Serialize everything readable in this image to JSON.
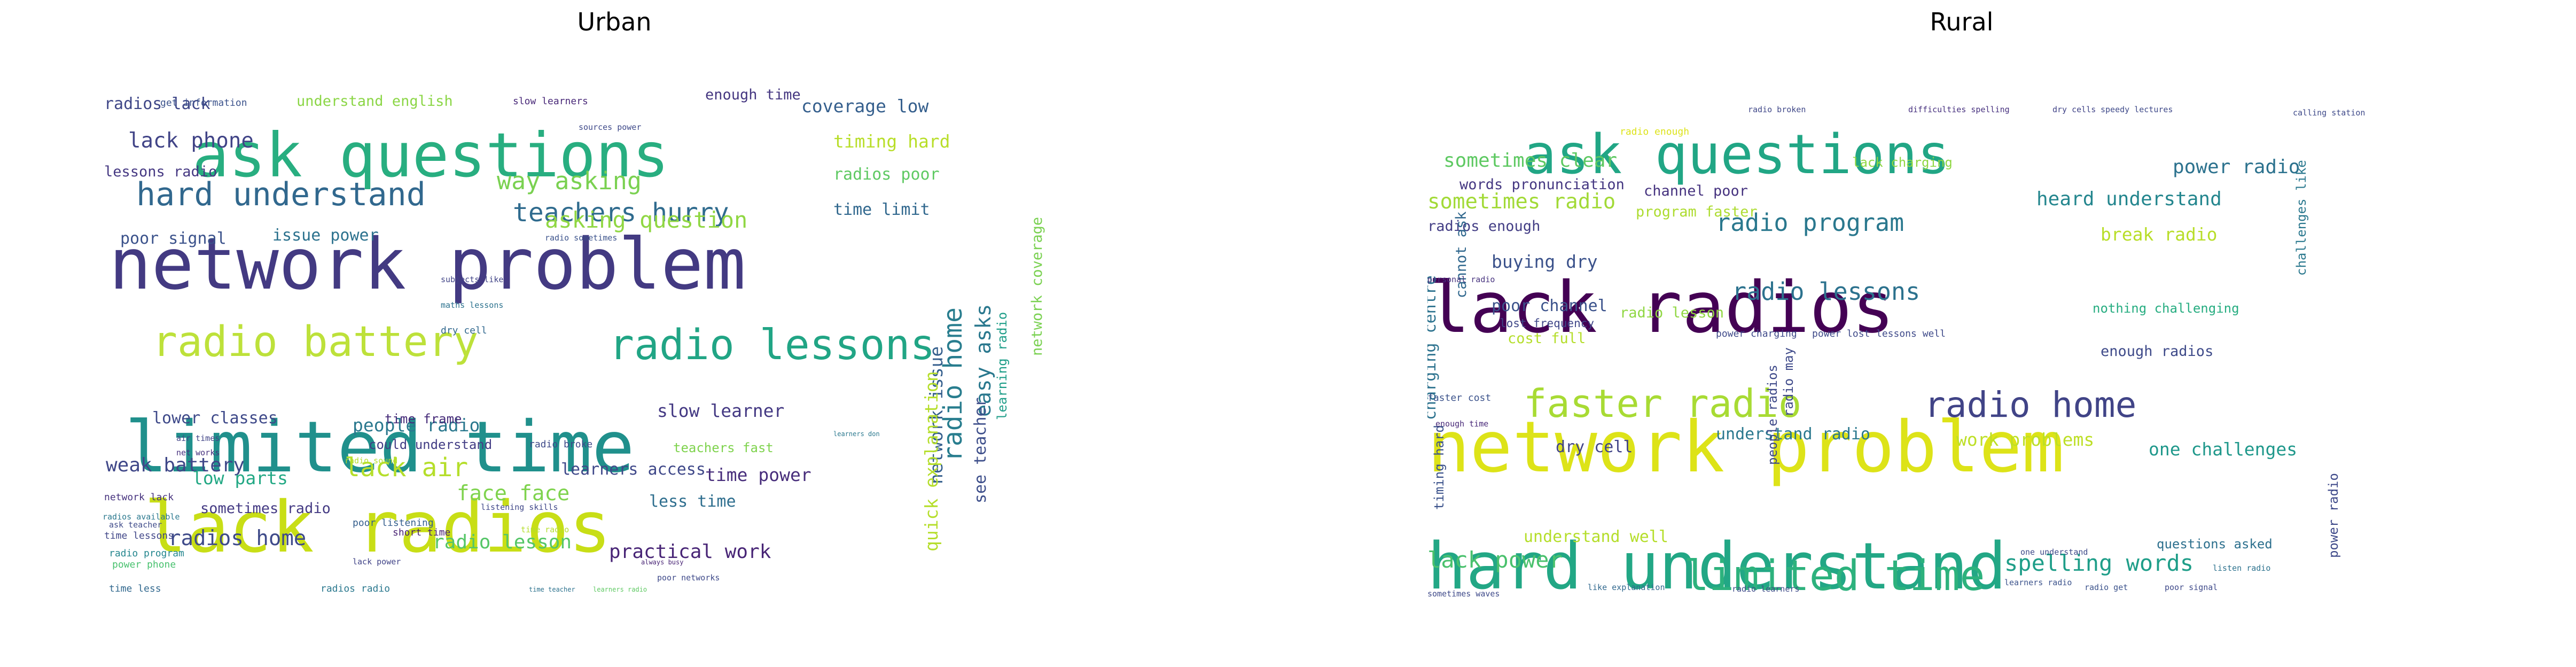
{
  "figure": {
    "panels": [
      {
        "title": "Urban",
        "words": [
          {
            "text": "lack radios",
            "size": 44,
            "color": "#c8de16",
            "v": false
          },
          {
            "text": "limited time",
            "size": 44,
            "color": "#20908c",
            "v": false
          },
          {
            "text": "network problem",
            "size": 44,
            "color": "#433a82",
            "v": false
          },
          {
            "text": "ask questions",
            "size": 38,
            "color": "#28ae80",
            "v": false
          },
          {
            "text": "radio battery",
            "size": 26,
            "color": "#bde13a",
            "v": false
          },
          {
            "text": "radio lessons",
            "size": 26,
            "color": "#21a585",
            "v": false
          },
          {
            "text": "hard understand",
            "size": 20,
            "color": "#31688e",
            "v": false
          },
          {
            "text": "teachers hurry",
            "size": 16,
            "color": "#2f6b8e",
            "v": false
          },
          {
            "text": "way asking",
            "size": 15,
            "color": "#7ad151",
            "v": false
          },
          {
            "text": "asking question",
            "size": 14,
            "color": "#90d743",
            "v": false
          },
          {
            "text": "lack air",
            "size": 16,
            "color": "#b5de2b",
            "v": false
          },
          {
            "text": "face face",
            "size": 13,
            "color": "#7fd34e",
            "v": false
          },
          {
            "text": "radios home",
            "size": 13,
            "color": "#3e4a89",
            "v": false
          },
          {
            "text": "radio lesson",
            "size": 12,
            "color": "#55c667",
            "v": false
          },
          {
            "text": "practical work",
            "size": 12,
            "color": "#482576",
            "v": false
          },
          {
            "text": "lack phone",
            "size": 13,
            "color": "#414487",
            "v": false
          },
          {
            "text": "coverage low",
            "size": 11,
            "color": "#355f8d",
            "v": false
          },
          {
            "text": "timing hard",
            "size": 11,
            "color": "#b8de29",
            "v": false
          },
          {
            "text": "radios poor",
            "size": 10,
            "color": "#5ec962",
            "v": false
          },
          {
            "text": "time limit",
            "size": 10,
            "color": "#31688e",
            "v": false
          },
          {
            "text": "poor signal",
            "size": 10,
            "color": "#3b528b",
            "v": false
          },
          {
            "text": "issue power",
            "size": 10,
            "color": "#2c728e",
            "v": false
          },
          {
            "text": "people radio",
            "size": 11,
            "color": "#2a788e",
            "v": false
          },
          {
            "text": "slow learner",
            "size": 11,
            "color": "#443983",
            "v": false
          },
          {
            "text": "lower classes",
            "size": 10,
            "color": "#3e4989",
            "v": false
          },
          {
            "text": "weak battery",
            "size": 12,
            "color": "#3f4788",
            "v": false
          },
          {
            "text": "low parts",
            "size": 11,
            "color": "#22a884",
            "v": false
          },
          {
            "text": "learners access",
            "size": 10,
            "color": "#3f4889",
            "v": false
          },
          {
            "text": "time power",
            "size": 11,
            "color": "#472d7b",
            "v": false
          },
          {
            "text": "less time",
            "size": 10,
            "color": "#2e6e8e",
            "v": false
          },
          {
            "text": "sometimes radio",
            "size": 9,
            "color": "#443a83",
            "v": false
          },
          {
            "text": "radios lack",
            "size": 10,
            "color": "#3f4788",
            "v": false
          },
          {
            "text": "understand english",
            "size": 9,
            "color": "#8bd646",
            "v": false
          },
          {
            "text": "enough time",
            "size": 9,
            "color": "#453781",
            "v": false
          },
          {
            "text": "lessons radio",
            "size": 9,
            "color": "#453882",
            "v": false
          },
          {
            "text": "could understand",
            "size": 8,
            "color": "#433e85",
            "v": false
          },
          {
            "text": "time frame",
            "size": 8,
            "color": "#472c7a",
            "v": false
          },
          {
            "text": "teachers fast",
            "size": 8,
            "color": "#7fd34e",
            "v": false
          },
          {
            "text": "radio home",
            "size": 16,
            "color": "#287d8e",
            "v": true
          },
          {
            "text": "easy asks",
            "size": 13,
            "color": "#2a788e",
            "v": true
          },
          {
            "text": "network issue",
            "size": 11,
            "color": "#355f8d",
            "v": true
          },
          {
            "text": "quick explanation",
            "size": 11,
            "color": "#b5de2b",
            "v": true
          },
          {
            "text": "see teacher",
            "size": 10,
            "color": "#3d4e8a",
            "v": true
          },
          {
            "text": "network coverage",
            "size": 9,
            "color": "#7ad151",
            "v": true
          },
          {
            "text": "learning radio",
            "size": 8,
            "color": "#1f9e89",
            "v": true
          },
          {
            "text": "get information",
            "size": 6,
            "color": "#3b528b",
            "v": false
          },
          {
            "text": "slow learners",
            "size": 6,
            "color": "#482878",
            "v": false
          },
          {
            "text": "radio sometimes",
            "size": 5,
            "color": "#3b528b",
            "v": false
          },
          {
            "text": "subjects like",
            "size": 5,
            "color": "#414487",
            "v": false
          },
          {
            "text": "maths lessons",
            "size": 5,
            "color": "#2c728e",
            "v": false
          },
          {
            "text": "dry cell",
            "size": 6,
            "color": "#31688e",
            "v": false
          },
          {
            "text": "short time",
            "size": 6,
            "color": "#482173",
            "v": false
          },
          {
            "text": "poor listening",
            "size": 6,
            "color": "#355f8d",
            "v": false
          },
          {
            "text": "radio broke",
            "size": 6,
            "color": "#3e4989",
            "v": false
          },
          {
            "text": "power phone",
            "size": 6,
            "color": "#48c16e",
            "v": false
          },
          {
            "text": "time less",
            "size": 6,
            "color": "#31688e",
            "v": false
          },
          {
            "text": "radios radio",
            "size": 6,
            "color": "#2a788e",
            "v": false
          },
          {
            "text": "network lack",
            "size": 6,
            "color": "#46327e",
            "v": false
          },
          {
            "text": "time lessons",
            "size": 6,
            "color": "#404688",
            "v": false
          },
          {
            "text": "radio program",
            "size": 6,
            "color": "#24868e",
            "v": false
          },
          {
            "text": "air times",
            "size": 5,
            "color": "#414487",
            "v": false
          },
          {
            "text": "net works",
            "size": 5,
            "color": "#46307e",
            "v": false
          },
          {
            "text": "lack power",
            "size": 5,
            "color": "#404387",
            "v": false
          },
          {
            "text": "radio sound",
            "size": 5,
            "color": "#b5de2b",
            "v": false
          },
          {
            "text": "poor networks",
            "size": 5,
            "color": "#3e4989",
            "v": false
          },
          {
            "text": "always busy",
            "size": 4,
            "color": "#482475",
            "v": false
          },
          {
            "text": "learners radio",
            "size": 4,
            "color": "#5ec962",
            "v": false
          },
          {
            "text": "time teacher",
            "size": 4,
            "color": "#2c728e",
            "v": false
          },
          {
            "text": "learners don",
            "size": 4,
            "color": "#2a788e",
            "v": false
          },
          {
            "text": "time radio",
            "size": 5,
            "color": "#b5de2b",
            "v": false
          },
          {
            "text": "radios available",
            "size": 5,
            "color": "#2a788e",
            "v": false
          },
          {
            "text": "ask teacher",
            "size": 5,
            "color": "#3e4a89",
            "v": false
          },
          {
            "text": "listening skills",
            "size": 5,
            "color": "#3f4788",
            "v": false
          },
          {
            "text": "sources power",
            "size": 5,
            "color": "#3e4989",
            "v": false
          }
        ]
      },
      {
        "title": "Rural",
        "words": [
          {
            "text": "lack radios",
            "size": 44,
            "color": "#440154",
            "v": false
          },
          {
            "text": "network problem",
            "size": 44,
            "color": "#dde318",
            "v": false
          },
          {
            "text": "hard understand",
            "size": 40,
            "color": "#22a785",
            "v": false
          },
          {
            "text": "ask questions",
            "size": 34,
            "color": "#21a685",
            "v": false
          },
          {
            "text": "limited time",
            "size": 26,
            "color": "#2db27d",
            "v": false
          },
          {
            "text": "faster radio",
            "size": 24,
            "color": "#a8db34",
            "v": false
          },
          {
            "text": "radio home",
            "size": 22,
            "color": "#414487",
            "v": false
          },
          {
            "text": "radio program",
            "size": 15,
            "color": "#2a788e",
            "v": false
          },
          {
            "text": "radio lessons",
            "size": 15,
            "color": "#2c728e",
            "v": false
          },
          {
            "text": "spelling words",
            "size": 14,
            "color": "#1f9e89",
            "v": false
          },
          {
            "text": "lack power",
            "size": 14,
            "color": "#4ac16d",
            "v": false
          },
          {
            "text": "sometimes radio",
            "size": 13,
            "color": "#a2da37",
            "v": false
          },
          {
            "text": "sometimes clear",
            "size": 12,
            "color": "#5ec962",
            "v": false
          },
          {
            "text": "power radio",
            "size": 12,
            "color": "#2c728e",
            "v": false
          },
          {
            "text": "heard understand",
            "size": 12,
            "color": "#24868e",
            "v": false
          },
          {
            "text": "break radio",
            "size": 11,
            "color": "#b8de29",
            "v": false
          },
          {
            "text": "buying dry",
            "size": 11,
            "color": "#3b528b",
            "v": false
          },
          {
            "text": "work problems",
            "size": 11,
            "color": "#bddf26",
            "v": false
          },
          {
            "text": "one challenges",
            "size": 11,
            "color": "#1f988b",
            "v": false
          },
          {
            "text": "understand radio",
            "size": 10,
            "color": "#2a788e",
            "v": false
          },
          {
            "text": "understand well",
            "size": 10,
            "color": "#b5de2b",
            "v": false
          },
          {
            "text": "dry cell",
            "size": 10,
            "color": "#414487",
            "v": false
          },
          {
            "text": "poor channel",
            "size": 10,
            "color": "#3b528b",
            "v": false
          },
          {
            "text": "cost full",
            "size": 9,
            "color": "#b5de2b",
            "v": false
          },
          {
            "text": "radio lesson",
            "size": 9,
            "color": "#90d743",
            "v": false
          },
          {
            "text": "enough radios",
            "size": 9,
            "color": "#3e4a89",
            "v": false
          },
          {
            "text": "channel poor",
            "size": 9,
            "color": "#46337f",
            "v": false
          },
          {
            "text": "program faster",
            "size": 9,
            "color": "#addc30",
            "v": false
          },
          {
            "text": "words pronunciation",
            "size": 9,
            "color": "#453882",
            "v": false
          },
          {
            "text": "radios enough",
            "size": 9,
            "color": "#433e85",
            "v": false
          },
          {
            "text": "nothing challenging",
            "size": 8,
            "color": "#27ad81",
            "v": false
          },
          {
            "text": "lost frequency",
            "size": 7,
            "color": "#3f4788",
            "v": false
          },
          {
            "text": "questions asked",
            "size": 8,
            "color": "#2d708e",
            "v": false
          },
          {
            "text": "lack charging",
            "size": 8,
            "color": "#90d743",
            "v": false
          },
          {
            "text": "charging centre",
            "size": 10,
            "color": "#2c728e",
            "v": true
          },
          {
            "text": "cannot ask",
            "size": 9,
            "color": "#31688e",
            "v": true
          },
          {
            "text": "timing hard",
            "size": 8,
            "color": "#3b528b",
            "v": true
          },
          {
            "text": "people radios",
            "size": 8,
            "color": "#3e4989",
            "v": true
          },
          {
            "text": "radio may",
            "size": 8,
            "color": "#3e4989",
            "v": true
          },
          {
            "text": "challenges like",
            "size": 8,
            "color": "#2a788e",
            "v": true
          },
          {
            "text": "power radio",
            "size": 8,
            "color": "#3e4989",
            "v": true
          },
          {
            "text": "faster cost",
            "size": 6,
            "color": "#3b528b",
            "v": false
          },
          {
            "text": "enough time",
            "size": 5,
            "color": "#482878",
            "v": false
          },
          {
            "text": "radio enough",
            "size": 6,
            "color": "#dde318",
            "v": false
          },
          {
            "text": "radio broken",
            "size": 5,
            "color": "#3f4788",
            "v": false
          },
          {
            "text": "lessons well",
            "size": 6,
            "color": "#3e4989",
            "v": false
          },
          {
            "text": "power charging",
            "size": 6,
            "color": "#3e4989",
            "v": false
          },
          {
            "text": "power lost",
            "size": 6,
            "color": "#3e4989",
            "v": false
          },
          {
            "text": "personal radio",
            "size": 5,
            "color": "#46327e",
            "v": false
          },
          {
            "text": "difficulties spelling",
            "size": 5,
            "color": "#46307e",
            "v": false
          },
          {
            "text": "dry cells",
            "size": 5,
            "color": "#404387",
            "v": false
          },
          {
            "text": "speedy lectures",
            "size": 5,
            "color": "#3e4989",
            "v": false
          },
          {
            "text": "calling station",
            "size": 5,
            "color": "#3e4989",
            "v": false
          },
          {
            "text": "learners radio",
            "size": 5,
            "color": "#3b528b",
            "v": false
          },
          {
            "text": "radio get",
            "size": 5,
            "color": "#3b528b",
            "v": false
          },
          {
            "text": "poor signal",
            "size": 5,
            "color": "#3e4989",
            "v": false
          },
          {
            "text": "sometimes waves",
            "size": 5,
            "color": "#3e4989",
            "v": false
          },
          {
            "text": "like explanation",
            "size": 5,
            "color": "#31688e",
            "v": false
          },
          {
            "text": "radio learners",
            "size": 5,
            "color": "#3e4989",
            "v": false
          },
          {
            "text": "listen radio",
            "size": 5,
            "color": "#2c728e",
            "v": false
          },
          {
            "text": "one understand",
            "size": 5,
            "color": "#3e4989",
            "v": false
          }
        ]
      }
    ]
  }
}
